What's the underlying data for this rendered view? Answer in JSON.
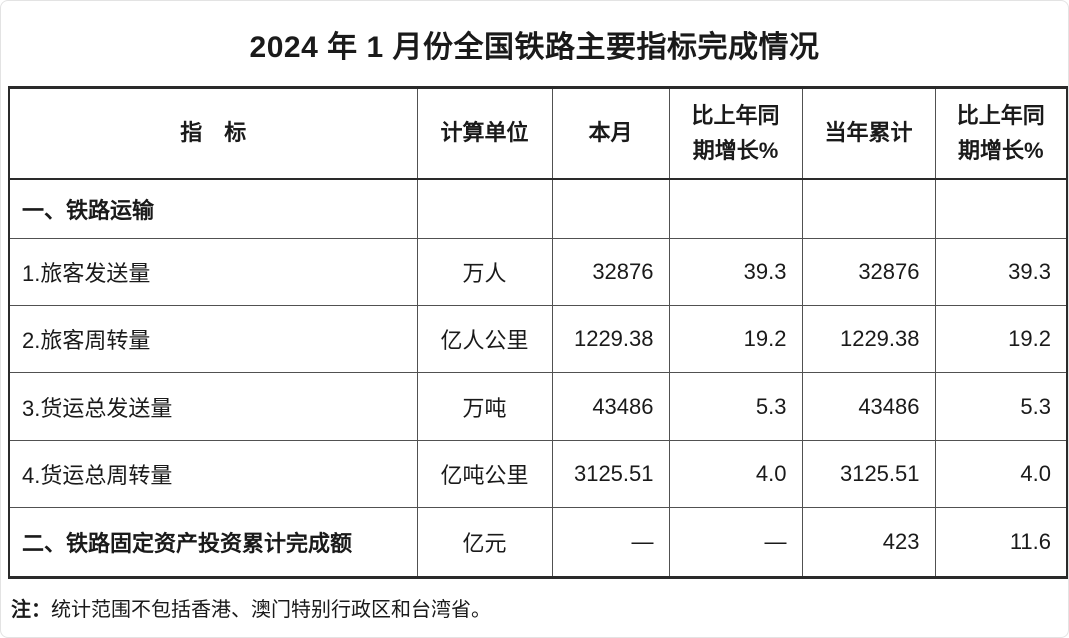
{
  "title": "2024 年 1 月份全国铁路主要指标完成情况",
  "table": {
    "columns": [
      {
        "key": "indicator",
        "label": "指　标"
      },
      {
        "key": "unit",
        "label": "计算单位"
      },
      {
        "key": "month",
        "label": "本月"
      },
      {
        "key": "month_yoy",
        "label": "比上年同期增长%"
      },
      {
        "key": "ytd",
        "label": "当年累计"
      },
      {
        "key": "ytd_yoy",
        "label": "比上年同期增长%"
      }
    ],
    "rows": [
      {
        "indicator": "一、铁路运输",
        "unit": "",
        "month": "",
        "month_yoy": "",
        "ytd": "",
        "ytd_yoy": "",
        "section": true
      },
      {
        "indicator": "1.旅客发送量",
        "unit": "万人",
        "month": "32876",
        "month_yoy": "39.3",
        "ytd": "32876",
        "ytd_yoy": "39.3",
        "section": false
      },
      {
        "indicator": "2.旅客周转量",
        "unit": "亿人公里",
        "month": "1229.38",
        "month_yoy": "19.2",
        "ytd": "1229.38",
        "ytd_yoy": "19.2",
        "section": false
      },
      {
        "indicator": "3.货运总发送量",
        "unit": "万吨",
        "month": "43486",
        "month_yoy": "5.3",
        "ytd": "43486",
        "ytd_yoy": "5.3",
        "section": false
      },
      {
        "indicator": "4.货运总周转量",
        "unit": "亿吨公里",
        "month": "3125.51",
        "month_yoy": "4.0",
        "ytd": "3125.51",
        "ytd_yoy": "4.0",
        "section": false
      },
      {
        "indicator": "二、铁路固定资产投资累计完成额",
        "unit": "亿元",
        "month": "—",
        "month_yoy": "—",
        "ytd": "423",
        "ytd_yoy": "11.6",
        "section": true
      }
    ]
  },
  "note": {
    "prefix": "注：",
    "text": "统计范围不包括香港、澳门特别行政区和台湾省。"
  }
}
